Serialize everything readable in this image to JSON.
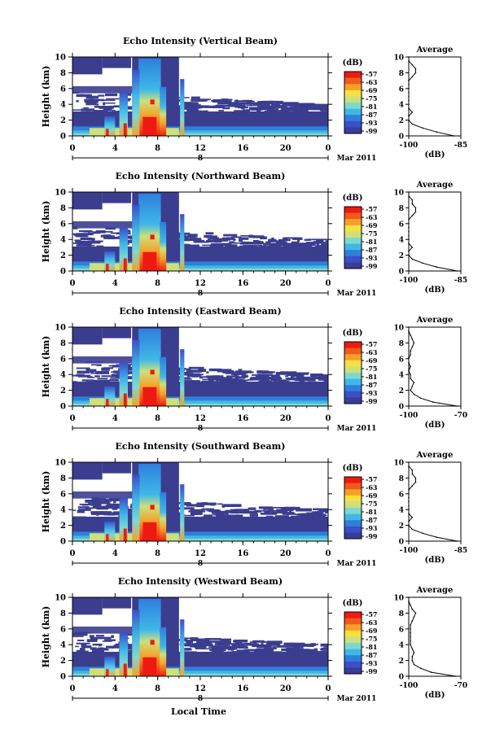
{
  "figure": {
    "xlabel": "Local Time",
    "colorbar_label": "(dB)",
    "colorbar_ticks": [
      "-57",
      "-63",
      "-69",
      "-75",
      "-81",
      "-87",
      "-93",
      "-99"
    ],
    "colorbar_colors": [
      "#ee1a12",
      "#f05a1c",
      "#f6a028",
      "#f8e040",
      "#cde07a",
      "#7fd8d0",
      "#3fb8e8",
      "#2e7fdc",
      "#3a50c8",
      "#3a3c9a"
    ],
    "profile_title": "Average",
    "profile_xlabel": "(dB)",
    "date_label": "Mar 2011",
    "date_marker": "8",
    "bg_color": "#3b3d8f"
  },
  "chart_data": [
    {
      "type": "heatmap",
      "title": "Echo Intensity (Vertical Beam)",
      "ylabel": "Height (km)",
      "xlim": [
        0,
        24
      ],
      "ylim": [
        0,
        10
      ],
      "xticks": [
        "0",
        "4",
        "8",
        "12",
        "16",
        "20",
        "0"
      ],
      "yticks": [
        "0",
        "2",
        "4",
        "6",
        "8",
        "10"
      ],
      "profile": {
        "xlim": [
          -100,
          -85
        ],
        "xticks": [
          "-100",
          "-85"
        ],
        "heights": [
          0,
          0.5,
          1,
          1.5,
          2,
          2.5,
          3,
          3.5,
          4,
          4.5,
          5,
          5.5,
          6,
          6.5,
          7,
          7.5,
          8,
          8.5,
          9,
          9.5,
          10
        ],
        "values": [
          -87,
          -92,
          -96,
          -99,
          -100,
          -100,
          -99,
          -100,
          -101,
          -101,
          -101,
          -101,
          -100,
          -101,
          -100,
          -99,
          -98,
          -98,
          -99,
          -100,
          -100
        ]
      }
    },
    {
      "type": "heatmap",
      "title": "Echo Intensity (Northward Beam)",
      "ylabel": "Height (km)",
      "xlim": [
        0,
        24
      ],
      "ylim": [
        0,
        10
      ],
      "xticks": [
        "0",
        "4",
        "8",
        "12",
        "16",
        "20",
        "0"
      ],
      "yticks": [
        "0",
        "2",
        "4",
        "6",
        "8",
        "10"
      ],
      "profile": {
        "xlim": [
          -100,
          -85
        ],
        "xticks": [
          "-100",
          "-85"
        ],
        "heights": [
          0,
          0.5,
          1,
          1.5,
          2,
          2.5,
          3,
          3.5,
          4,
          4.5,
          5,
          5.5,
          6,
          6.5,
          7,
          7.5,
          8,
          8.5,
          9,
          9.5,
          10
        ],
        "values": [
          -86,
          -92,
          -96,
          -99,
          -100,
          -100,
          -99,
          -100,
          -100,
          -101,
          -100,
          -101,
          -100,
          -100,
          -99,
          -98,
          -98,
          -99,
          -99,
          -100,
          -100
        ]
      }
    },
    {
      "type": "heatmap",
      "title": "Echo Intensity (Eastward Beam)",
      "ylabel": "Height (km)",
      "xlim": [
        0,
        24
      ],
      "ylim": [
        0,
        10
      ],
      "xticks": [
        "0",
        "4",
        "8",
        "12",
        "16",
        "20",
        "0"
      ],
      "yticks": [
        "0",
        "2",
        "4",
        "6",
        "8",
        "10"
      ],
      "profile": {
        "xlim": [
          -100,
          -70
        ],
        "xticks": [
          "-100",
          "-70"
        ],
        "heights": [
          0,
          0.5,
          1,
          1.5,
          2,
          2.5,
          3,
          3.5,
          4,
          4.5,
          5,
          5.5,
          6,
          6.5,
          7,
          7.5,
          8,
          8.5,
          9,
          9.5,
          10
        ],
        "values": [
          -72,
          -86,
          -93,
          -97,
          -99,
          -98,
          -97,
          -99,
          -99,
          -100,
          -99,
          -100,
          -100,
          -99,
          -99,
          -98,
          -97,
          -98,
          -99,
          -100,
          -100
        ]
      }
    },
    {
      "type": "heatmap",
      "title": "Echo Intensity (Southward Beam)",
      "ylabel": "Height (km)",
      "xlim": [
        0,
        24
      ],
      "ylim": [
        0,
        10
      ],
      "xticks": [
        "0",
        "4",
        "8",
        "12",
        "16",
        "20",
        "0"
      ],
      "yticks": [
        "0",
        "2",
        "4",
        "6",
        "8",
        "10"
      ],
      "profile": {
        "xlim": [
          -100,
          -85
        ],
        "xticks": [
          "-100",
          "-85"
        ],
        "heights": [
          0,
          0.5,
          1,
          1.5,
          2,
          2.5,
          3,
          3.5,
          4,
          4.5,
          5,
          5.5,
          6,
          6.5,
          7,
          7.5,
          8,
          8.5,
          9,
          9.5,
          10
        ],
        "values": [
          -86,
          -92,
          -96,
          -99,
          -100,
          -100,
          -99,
          -100,
          -101,
          -100,
          -100,
          -101,
          -100,
          -100,
          -99,
          -98,
          -98,
          -99,
          -99,
          -100,
          -100
        ]
      }
    },
    {
      "type": "heatmap",
      "title": "Echo Intensity (Westward Beam)",
      "ylabel": "Height (km)",
      "xlim": [
        0,
        24
      ],
      "ylim": [
        0,
        10
      ],
      "xticks": [
        "0",
        "4",
        "8",
        "12",
        "16",
        "20",
        "0"
      ],
      "yticks": [
        "0",
        "2",
        "4",
        "6",
        "8",
        "10"
      ],
      "profile": {
        "xlim": [
          -100,
          -70
        ],
        "xticks": [
          "-100",
          "-70"
        ],
        "heights": [
          0,
          0.5,
          1,
          1.5,
          2,
          2.5,
          3,
          3.5,
          4,
          4.5,
          5,
          5.5,
          6,
          6.5,
          7,
          7.5,
          8,
          8.5,
          9,
          9.5,
          10
        ],
        "values": [
          -73,
          -87,
          -93,
          -97,
          -98,
          -98,
          -97,
          -98,
          -99,
          -99,
          -99,
          -99,
          -99,
          -99,
          -98,
          -97,
          -96,
          -98,
          -99,
          -100,
          -100
        ]
      }
    }
  ]
}
